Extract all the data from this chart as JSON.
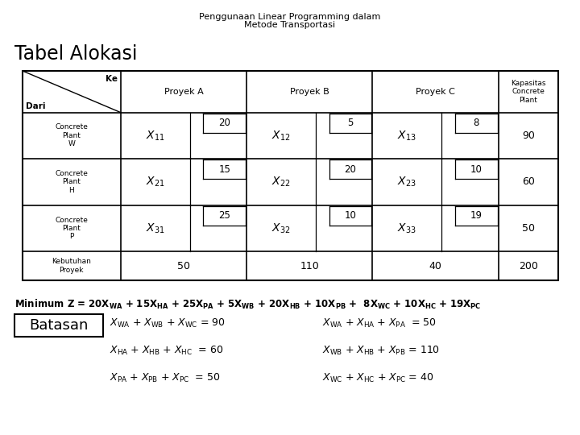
{
  "title_line1": "Penggunaan Linear Programming dalam",
  "title_line2": "Metode Transportasi",
  "section_title": "Tabel Alokasi",
  "bg_color": "#ffffff",
  "row_labels": [
    "Concrete\nPlant\nW",
    "Concrete\nPlant\nH",
    "Concrete\nPlant\nP",
    "Kebutuhan\nProyek"
  ],
  "cost_values": [
    [
      20,
      5,
      8
    ],
    [
      15,
      20,
      10
    ],
    [
      25,
      10,
      19
    ]
  ],
  "var_subs": [
    [
      "11",
      "12",
      "13"
    ],
    [
      "21",
      "22",
      "23"
    ],
    [
      "31",
      "32",
      "33"
    ]
  ],
  "capacity": [
    90,
    60,
    50
  ],
  "demand": [
    50,
    110,
    40,
    200
  ],
  "proyek_headers": [
    "Proyek A",
    "Proyek B",
    "Proyek C"
  ],
  "kap_header": "Kapasitas\nConcrete\nPlant",
  "min_z_text": "Minimum Z = 20X",
  "batasan_label": "Batasan"
}
